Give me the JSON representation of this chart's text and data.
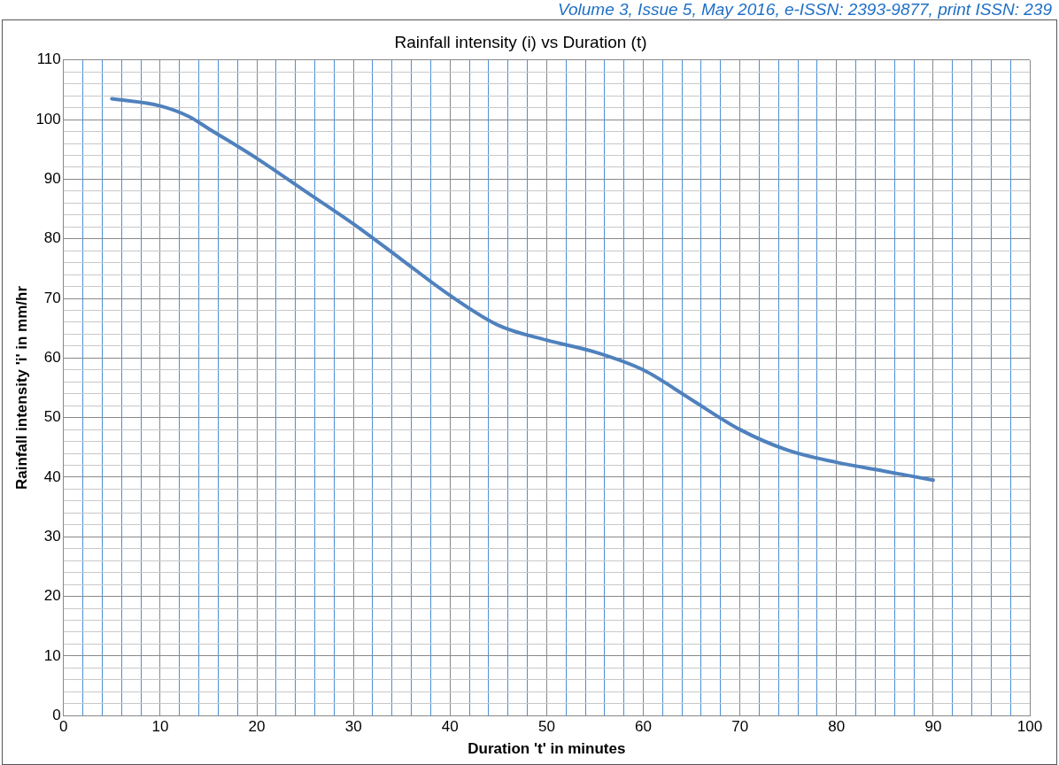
{
  "chart_data": {
    "type": "line",
    "title": "Rainfall intensity (i) vs Duration (t)",
    "xlabel": "Duration 't' in minutes",
    "ylabel": "Rainfall intensity 'i' in mm/hr",
    "annotations": [
      "Volume 3, Issue 5, May 2016, e-ISSN: 2393-9877, print ISSN: 239"
    ],
    "x": [
      5,
      10,
      13,
      15,
      20,
      25,
      30,
      35,
      40,
      45,
      50,
      55,
      60,
      65,
      70,
      75,
      80,
      85,
      90
    ],
    "series": [
      {
        "color": "#4f81bd",
        "values": [
          103.5,
          102.3,
          100.5,
          98.5,
          93.5,
          88,
          82.5,
          76.5,
          70.5,
          65.5,
          63,
          61,
          58,
          53,
          48,
          44.5,
          42.5,
          41,
          39.5
        ]
      }
    ],
    "xlim": [
      0,
      100
    ],
    "xticks": [
      0,
      {
        "value": 2,
        "label": null
      },
      {
        "value": 4,
        "label": null
      },
      {
        "value": 6,
        "label": null
      },
      {
        "value": 8,
        "label": null
      },
      10,
      {
        "value": 12,
        "label": null
      },
      {
        "value": 14,
        "label": null
      },
      {
        "value": 16,
        "label": null
      },
      {
        "value": 18,
        "label": null
      },
      20,
      {
        "value": 22,
        "label": null
      },
      {
        "value": 24,
        "label": null
      },
      {
        "value": 26,
        "label": null
      },
      {
        "value": 28,
        "label": null
      },
      30,
      {
        "value": 32,
        "label": null
      },
      {
        "value": 34,
        "label": null
      },
      {
        "value": 36,
        "label": null
      },
      {
        "value": 38,
        "label": null
      },
      40,
      {
        "value": 42,
        "label": null
      },
      {
        "value": 44,
        "label": null
      },
      {
        "value": 46,
        "label": null
      },
      {
        "value": 48,
        "label": null
      },
      50,
      {
        "value": 52,
        "label": null
      },
      {
        "value": 54,
        "label": null
      },
      {
        "value": 56,
        "label": null
      },
      {
        "value": 58,
        "label": null
      },
      60,
      {
        "value": 62,
        "label": null
      },
      {
        "value": 64,
        "label": null
      },
      {
        "value": 66,
        "label": null
      },
      {
        "value": 68,
        "label": null
      },
      70,
      {
        "value": 72,
        "label": null
      },
      {
        "value": 74,
        "label": null
      },
      {
        "value": 76,
        "label": null
      },
      {
        "value": 78,
        "label": null
      },
      80,
      {
        "value": 82,
        "label": null
      },
      {
        "value": 84,
        "label": null
      },
      {
        "value": 86,
        "label": null
      },
      {
        "value": 88,
        "label": null
      },
      90,
      {
        "value": 92,
        "label": null
      },
      {
        "value": 94,
        "label": null
      },
      {
        "value": 96,
        "label": null
      },
      {
        "value": 98,
        "label": null
      },
      100
    ],
    "ylim": [
      0,
      110
    ],
    "yticks": [
      0,
      {
        "value": 2,
        "label": null
      },
      {
        "value": 4,
        "label": null
      },
      {
        "value": 6,
        "label": null
      },
      {
        "value": 8,
        "label": null
      },
      10,
      {
        "value": 12,
        "label": null
      },
      {
        "value": 14,
        "label": null
      },
      {
        "value": 16,
        "label": null
      },
      {
        "value": 18,
        "label": null
      },
      20,
      {
        "value": 22,
        "label": null
      },
      {
        "value": 24,
        "label": null
      },
      {
        "value": 26,
        "label": null
      },
      {
        "value": 28,
        "label": null
      },
      30,
      {
        "value": 32,
        "label": null
      },
      {
        "value": 34,
        "label": null
      },
      {
        "value": 36,
        "label": null
      },
      {
        "value": 38,
        "label": null
      },
      40,
      {
        "value": 42,
        "label": null
      },
      {
        "value": 44,
        "label": null
      },
      {
        "value": 46,
        "label": null
      },
      {
        "value": 48,
        "label": null
      },
      50,
      {
        "value": 52,
        "label": null
      },
      {
        "value": 54,
        "label": null
      },
      {
        "value": 56,
        "label": null
      },
      {
        "value": 58,
        "label": null
      },
      60,
      {
        "value": 62,
        "label": null
      },
      {
        "value": 64,
        "label": null
      },
      {
        "value": 66,
        "label": null
      },
      {
        "value": 68,
        "label": null
      },
      70,
      {
        "value": 72,
        "label": null
      },
      {
        "value": 74,
        "label": null
      },
      {
        "value": 76,
        "label": null
      },
      {
        "value": 78,
        "label": null
      },
      80,
      {
        "value": 82,
        "label": null
      },
      {
        "value": 84,
        "label": null
      },
      {
        "value": 86,
        "label": null
      },
      {
        "value": 88,
        "label": null
      },
      90,
      {
        "value": 92,
        "label": null
      },
      {
        "value": 94,
        "label": null
      },
      {
        "value": 96,
        "label": null
      },
      {
        "value": 98,
        "label": null
      },
      100,
      {
        "value": 102,
        "label": null
      },
      {
        "value": 104,
        "label": null
      },
      {
        "value": 106,
        "label": null
      },
      {
        "value": 108,
        "label": null
      },
      110
    ],
    "grid": true,
    "legend": false,
    "marker": "none",
    "line_style": "solid"
  }
}
